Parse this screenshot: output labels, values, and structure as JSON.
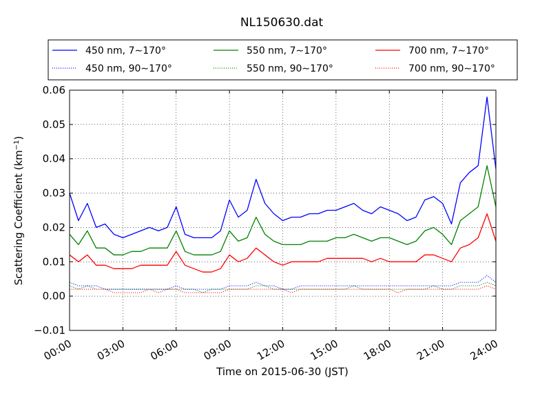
{
  "chart_data": {
    "type": "line",
    "title": "NL150630.dat",
    "xlabel": "Time on 2015-06-30 (JST)",
    "ylabel": "Scattering Coefficient (km",
    "ylabel_sup": "−1",
    "ylabel_close": ")",
    "xlim": [
      0,
      24
    ],
    "ylim": [
      -0.01,
      0.06
    ],
    "grid": true,
    "legend_position": "top, above plot",
    "x_tick_labels": [
      "00:00",
      "03:00",
      "06:00",
      "09:00",
      "12:00",
      "15:00",
      "18:00",
      "21:00",
      "24:00"
    ],
    "x_ticks": [
      0,
      3,
      6,
      9,
      12,
      15,
      18,
      21,
      24
    ],
    "y_tick_labels": [
      "−0.01",
      "0.00",
      "0.01",
      "0.02",
      "0.03",
      "0.04",
      "0.05",
      "0.06"
    ],
    "y_ticks": [
      -0.01,
      0.0,
      0.01,
      0.02,
      0.03,
      0.04,
      0.05,
      0.06
    ],
    "x": [
      0,
      0.5,
      1,
      1.5,
      2,
      2.5,
      3,
      3.5,
      4,
      4.5,
      5,
      5.5,
      6,
      6.5,
      7,
      7.5,
      8,
      8.5,
      9,
      9.5,
      10,
      10.5,
      11,
      11.5,
      12,
      12.5,
      13,
      13.5,
      14,
      14.5,
      15,
      15.5,
      16,
      16.5,
      17,
      17.5,
      18,
      18.5,
      19,
      19.5,
      20,
      20.5,
      21,
      21.5,
      22,
      22.5,
      23,
      23.5,
      24
    ],
    "series": [
      {
        "name": "450 nm, 7∼170°",
        "color": "#0000ff",
        "style": "solid",
        "values": [
          0.03,
          0.022,
          0.027,
          0.02,
          0.021,
          0.018,
          0.017,
          0.018,
          0.019,
          0.02,
          0.019,
          0.02,
          0.026,
          0.018,
          0.017,
          0.017,
          0.017,
          0.019,
          0.028,
          0.023,
          0.025,
          0.034,
          0.027,
          0.024,
          0.022,
          0.023,
          0.023,
          0.024,
          0.024,
          0.025,
          0.025,
          0.026,
          0.027,
          0.025,
          0.024,
          0.026,
          0.025,
          0.024,
          0.022,
          0.023,
          0.028,
          0.029,
          0.027,
          0.021,
          0.033,
          0.036,
          0.038,
          0.058,
          0.037
        ]
      },
      {
        "name": "550 nm, 7∼170°",
        "color": "#008000",
        "style": "solid",
        "values": [
          0.018,
          0.015,
          0.019,
          0.014,
          0.014,
          0.012,
          0.012,
          0.013,
          0.013,
          0.014,
          0.014,
          0.014,
          0.019,
          0.013,
          0.012,
          0.012,
          0.012,
          0.013,
          0.019,
          0.016,
          0.017,
          0.023,
          0.018,
          0.016,
          0.015,
          0.015,
          0.015,
          0.016,
          0.016,
          0.016,
          0.017,
          0.017,
          0.018,
          0.017,
          0.016,
          0.017,
          0.017,
          0.016,
          0.015,
          0.016,
          0.019,
          0.02,
          0.018,
          0.015,
          0.022,
          0.024,
          0.026,
          0.038,
          0.026
        ]
      },
      {
        "name": "700 nm, 7∼170°",
        "color": "#ff0000",
        "style": "solid",
        "values": [
          0.012,
          0.01,
          0.012,
          0.009,
          0.009,
          0.008,
          0.008,
          0.008,
          0.009,
          0.009,
          0.009,
          0.009,
          0.013,
          0.009,
          0.008,
          0.007,
          0.007,
          0.008,
          0.012,
          0.01,
          0.011,
          0.014,
          0.012,
          0.01,
          0.009,
          0.01,
          0.01,
          0.01,
          0.01,
          0.011,
          0.011,
          0.011,
          0.011,
          0.011,
          0.01,
          0.011,
          0.01,
          0.01,
          0.01,
          0.01,
          0.012,
          0.012,
          0.011,
          0.01,
          0.014,
          0.015,
          0.017,
          0.024,
          0.016
        ]
      },
      {
        "name": "450 nm, 90∼170°",
        "color": "#0000ff",
        "style": "dotted",
        "values": [
          0.004,
          0.003,
          0.003,
          0.003,
          0.002,
          0.002,
          0.002,
          0.002,
          0.002,
          0.002,
          0.002,
          0.002,
          0.003,
          0.002,
          0.002,
          0.002,
          0.002,
          0.002,
          0.003,
          0.003,
          0.003,
          0.004,
          0.003,
          0.003,
          0.002,
          0.002,
          0.003,
          0.003,
          0.003,
          0.003,
          0.003,
          0.003,
          0.003,
          0.003,
          0.003,
          0.003,
          0.003,
          0.003,
          0.003,
          0.003,
          0.003,
          0.003,
          0.003,
          0.003,
          0.004,
          0.004,
          0.004,
          0.006,
          0.004
        ]
      },
      {
        "name": "550 nm, 90∼170°",
        "color": "#008000",
        "style": "dotted",
        "values": [
          0.003,
          0.002,
          0.003,
          0.002,
          0.002,
          0.002,
          0.002,
          0.002,
          0.002,
          0.002,
          0.002,
          0.002,
          0.002,
          0.002,
          0.002,
          0.001,
          0.002,
          0.002,
          0.002,
          0.002,
          0.002,
          0.003,
          0.003,
          0.002,
          0.002,
          0.002,
          0.002,
          0.002,
          0.002,
          0.002,
          0.002,
          0.002,
          0.003,
          0.002,
          0.002,
          0.002,
          0.002,
          0.002,
          0.002,
          0.002,
          0.002,
          0.003,
          0.002,
          0.002,
          0.003,
          0.003,
          0.003,
          0.004,
          0.003
        ]
      },
      {
        "name": "700 nm, 90∼170°",
        "color": "#ff0000",
        "style": "dotted",
        "values": [
          0.002,
          0.002,
          0.002,
          0.002,
          0.002,
          0.001,
          0.001,
          0.001,
          0.001,
          0.002,
          0.001,
          0.002,
          0.002,
          0.001,
          0.001,
          0.001,
          0.001,
          0.001,
          0.002,
          0.002,
          0.002,
          0.002,
          0.002,
          0.002,
          0.002,
          0.001,
          0.002,
          0.002,
          0.002,
          0.002,
          0.002,
          0.002,
          0.002,
          0.002,
          0.002,
          0.002,
          0.002,
          0.001,
          0.002,
          0.002,
          0.002,
          0.002,
          0.002,
          0.002,
          0.002,
          0.002,
          0.002,
          0.003,
          0.002
        ]
      }
    ],
    "legend_order": [
      0,
      1,
      2,
      3,
      4,
      5
    ]
  }
}
